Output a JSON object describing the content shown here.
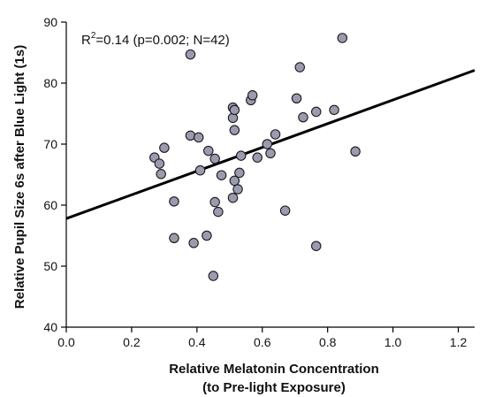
{
  "chart_data": {
    "type": "scatter",
    "xlabel": "Relative Melatonin Concentration",
    "xlabel_line2": "(to Pre-light Exposure)",
    "ylabel": "Relative Pupil Size 6s after Blue Light (1s)",
    "annotation": {
      "prefix": "R",
      "superscript": "2",
      "text": "=0.14 (p=0.002; N=42)"
    },
    "xlim": [
      0.0,
      1.25
    ],
    "ylim": [
      40,
      90
    ],
    "x_ticks": [
      "0.0",
      "0.2",
      "0.4",
      "0.6",
      "0.8",
      "1.0",
      "1.2"
    ],
    "y_ticks": [
      "40",
      "50",
      "60",
      "70",
      "80",
      "90"
    ],
    "grid": false,
    "marker_color": "#9b9bb0",
    "line_color": "#000000",
    "trendline": {
      "x": [
        0.0,
        1.25
      ],
      "y": [
        57.8,
        82.1
      ]
    },
    "points": [
      {
        "x": 0.27,
        "y": 67.8
      },
      {
        "x": 0.285,
        "y": 66.8
      },
      {
        "x": 0.29,
        "y": 65.1
      },
      {
        "x": 0.3,
        "y": 69.4
      },
      {
        "x": 0.33,
        "y": 60.6
      },
      {
        "x": 0.33,
        "y": 54.6
      },
      {
        "x": 0.38,
        "y": 84.7
      },
      {
        "x": 0.38,
        "y": 71.4
      },
      {
        "x": 0.39,
        "y": 53.8
      },
      {
        "x": 0.405,
        "y": 71.1
      },
      {
        "x": 0.41,
        "y": 65.7
      },
      {
        "x": 0.43,
        "y": 55.0
      },
      {
        "x": 0.435,
        "y": 68.9
      },
      {
        "x": 0.45,
        "y": 48.4
      },
      {
        "x": 0.455,
        "y": 60.5
      },
      {
        "x": 0.455,
        "y": 67.6
      },
      {
        "x": 0.465,
        "y": 58.9
      },
      {
        "x": 0.475,
        "y": 64.9
      },
      {
        "x": 0.51,
        "y": 76.0
      },
      {
        "x": 0.51,
        "y": 74.3
      },
      {
        "x": 0.51,
        "y": 61.2
      },
      {
        "x": 0.515,
        "y": 75.6
      },
      {
        "x": 0.515,
        "y": 72.3
      },
      {
        "x": 0.515,
        "y": 64.0
      },
      {
        "x": 0.525,
        "y": 62.6
      },
      {
        "x": 0.53,
        "y": 65.3
      },
      {
        "x": 0.535,
        "y": 68.1
      },
      {
        "x": 0.565,
        "y": 77.2
      },
      {
        "x": 0.57,
        "y": 78.0
      },
      {
        "x": 0.585,
        "y": 67.8
      },
      {
        "x": 0.615,
        "y": 70.0
      },
      {
        "x": 0.625,
        "y": 68.5
      },
      {
        "x": 0.64,
        "y": 71.6
      },
      {
        "x": 0.67,
        "y": 59.1
      },
      {
        "x": 0.705,
        "y": 77.5
      },
      {
        "x": 0.715,
        "y": 82.6
      },
      {
        "x": 0.725,
        "y": 74.4
      },
      {
        "x": 0.765,
        "y": 75.3
      },
      {
        "x": 0.765,
        "y": 53.3
      },
      {
        "x": 0.82,
        "y": 75.6
      },
      {
        "x": 0.845,
        "y": 87.4
      },
      {
        "x": 0.885,
        "y": 68.8
      }
    ]
  }
}
